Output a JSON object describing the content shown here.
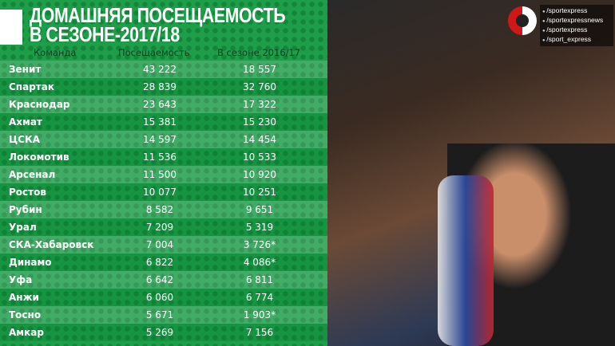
{
  "title": {
    "line1": "ДОМАШНЯЯ ПОСЕЩАЕМОСТЬ",
    "line2": "В СЕЗОНЕ-2017/18"
  },
  "columns": [
    "Команда",
    "Посещаемость",
    "В сезоне 2016/17"
  ],
  "rows": [
    [
      "Зенит",
      "43 222",
      "18 557"
    ],
    [
      "Спартак",
      "28 839",
      "32 760"
    ],
    [
      "Краснодар",
      "23 643",
      "17 322"
    ],
    [
      "Ахмат",
      "15 381",
      "15 230"
    ],
    [
      "ЦСКА",
      "14 597",
      "14 454"
    ],
    [
      "Локомотив",
      "11 536",
      "10 533"
    ],
    [
      "Арсенал",
      "11 500",
      "10 920"
    ],
    [
      "Ростов",
      "10 077",
      "10 251"
    ],
    [
      "Рубин",
      "8 582",
      "9 651"
    ],
    [
      "Урал",
      "7 209",
      "5 319"
    ],
    [
      "СКА-Хабаровск",
      "7 004",
      "3 726*"
    ],
    [
      "Динамо",
      "6 822",
      "4 086*"
    ],
    [
      "Уфа",
      "6 642",
      "6 811"
    ],
    [
      "Анжи",
      "6 060",
      "6 774"
    ],
    [
      "Тосно",
      "5 671",
      "1 903*"
    ],
    [
      "Амкар",
      "5 269",
      "7 156"
    ]
  ],
  "social": [
    "/sportexpress",
    "/sportexpressnews",
    "/sportexpress",
    "/sport_express"
  ],
  "colors": {
    "panel": "#1f9e4a",
    "logo_red": "#d01818"
  }
}
